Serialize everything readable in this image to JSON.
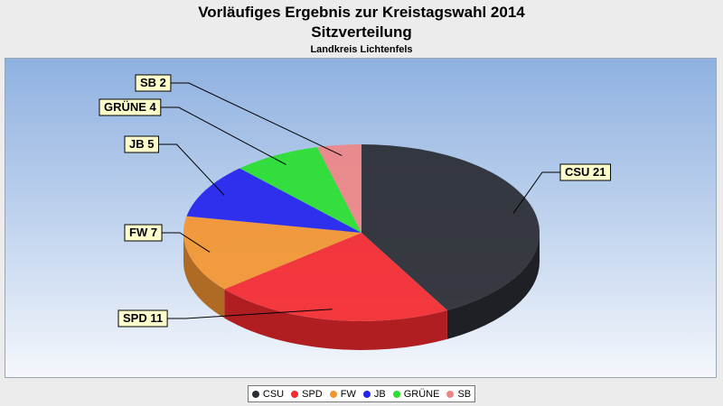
{
  "chart_data": {
    "type": "pie",
    "title": "Vorläufiges Ergebnis zur Kreistagswahl 2014",
    "subtitle": "Sitzverteilung",
    "caption": "Landkreis Lichtenfels",
    "legend_position": "bottom",
    "slices": [
      {
        "name": "CSU",
        "value": 21,
        "label": "CSU 21",
        "color": "#2a2c33"
      },
      {
        "name": "SPD",
        "value": 11,
        "label": "SPD 11",
        "color": "#f42a2f"
      },
      {
        "name": "FW",
        "value": 7,
        "label": "FW 7",
        "color": "#f39530"
      },
      {
        "name": "JB",
        "value": 5,
        "label": "JB 5",
        "color": "#2424ee"
      },
      {
        "name": "GRÜNE",
        "value": 4,
        "label": "GRÜNE 4",
        "color": "#2adf30"
      },
      {
        "name": "SB",
        "value": 2,
        "label": "SB 2",
        "color": "#ee8686"
      }
    ]
  }
}
